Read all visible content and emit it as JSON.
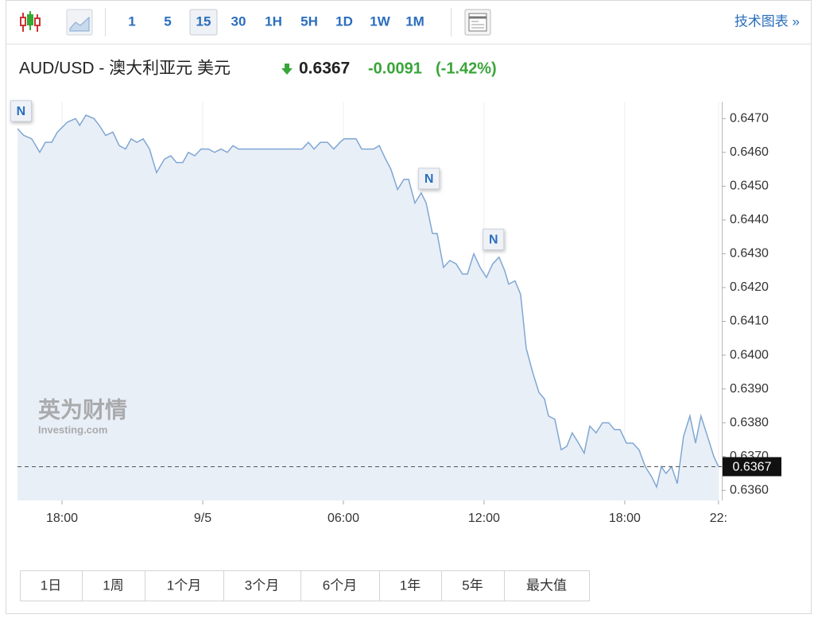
{
  "toolbar": {
    "intervals": [
      "1",
      "5",
      "15",
      "30",
      "1H",
      "5H",
      "1D",
      "1W",
      "1M"
    ],
    "selected": 2,
    "link": "技术图表 »"
  },
  "header": {
    "pair": "AUD/USD - 澳大利亚元 美元",
    "price": "0.6367",
    "change": "-0.0091",
    "change_pct": "(-1.42%)"
  },
  "watermark": {
    "brand": "英为财情",
    "site": "Investing.com"
  },
  "chart_data": {
    "type": "area",
    "color": "#7fa7d3",
    "fill": "#e9eff7",
    "x": [
      16.1,
      16.37,
      16.71,
      17.05,
      17.29,
      17.56,
      17.8,
      18.24,
      18.58,
      18.75,
      19.02,
      19.36,
      19.59,
      19.86,
      20.17,
      20.44,
      20.71,
      20.95,
      21.19,
      21.46,
      21.73,
      22.03,
      22.37,
      22.64,
      22.88,
      23.15,
      23.39,
      23.66,
      23.93,
      24.24,
      24.51,
      24.78,
      25.05,
      25.29,
      25.53,
      26.03,
      26.27,
      26.71,
      27.73,
      27.97,
      28.24,
      28.51,
      28.75,
      29.02,
      29.32,
      29.59,
      29.86,
      30.03,
      30.27,
      30.54,
      30.78,
      31.29,
      31.53,
      31.8,
      32.03,
      32.31,
      32.58,
      32.78,
      33.05,
      33.32,
      33.53,
      33.8,
      34.0,
      34.27,
      34.54,
      34.81,
      35.08,
      35.29,
      35.56,
      35.83,
      36.1,
      36.37,
      36.64,
      36.88,
      37.05,
      37.32,
      37.56,
      37.8,
      38.07,
      38.34,
      38.58,
      38.75,
      39.02,
      39.29,
      39.53,
      39.76,
      40.03,
      40.27,
      40.51,
      40.78,
      41.05,
      41.32,
      41.56,
      41.8,
      42.07,
      42.34,
      42.61,
      42.88,
      43.15,
      43.36,
      43.56,
      43.76,
      44.0,
      44.24,
      44.51,
      44.78,
      45.02,
      45.25,
      45.53,
      45.8,
      46.0
    ],
    "values": [
      0.6467,
      0.6465,
      0.6464,
      0.646,
      0.6463,
      0.6463,
      0.6466,
      0.6469,
      0.647,
      0.6468,
      0.6471,
      0.647,
      0.6468,
      0.6465,
      0.6466,
      0.6462,
      0.6461,
      0.6464,
      0.6463,
      0.6464,
      0.6461,
      0.6454,
      0.6458,
      0.6459,
      0.6457,
      0.6457,
      0.646,
      0.6459,
      0.6461,
      0.6461,
      0.646,
      0.6461,
      0.646,
      0.6462,
      0.6461,
      0.6461,
      0.6461,
      0.6461,
      0.6461,
      0.6461,
      0.6461,
      0.6463,
      0.6461,
      0.6463,
      0.6463,
      0.6461,
      0.6463,
      0.6464,
      0.6464,
      0.6464,
      0.6461,
      0.6461,
      0.6462,
      0.6458,
      0.6455,
      0.6449,
      0.6452,
      0.6452,
      0.6445,
      0.6448,
      0.6445,
      0.6436,
      0.6436,
      0.6426,
      0.6428,
      0.6427,
      0.6424,
      0.6424,
      0.643,
      0.6426,
      0.6423,
      0.6427,
      0.6429,
      0.6425,
      0.6421,
      0.6422,
      0.6418,
      0.6402,
      0.6395,
      0.6389,
      0.6387,
      0.6382,
      0.6381,
      0.6372,
      0.6373,
      0.6377,
      0.6374,
      0.6371,
      0.6379,
      0.6377,
      0.638,
      0.638,
      0.6378,
      0.6378,
      0.6374,
      0.6374,
      0.6372,
      0.6367,
      0.6364,
      0.6361,
      0.6367,
      0.6365,
      0.6367,
      0.6362,
      0.6376,
      0.6382,
      0.6374,
      0.6382,
      0.6376,
      0.637,
      0.6367
    ],
    "xlim": [
      16.1,
      46.14
    ],
    "xticks": [
      {
        "value": 18,
        "label": "18:00"
      },
      {
        "value": 24,
        "label": "9/5"
      },
      {
        "value": 30,
        "label": "06:00"
      },
      {
        "value": 36,
        "label": "12:00"
      },
      {
        "value": 42,
        "label": "18:00"
      },
      {
        "value": 46,
        "label": "22:"
      }
    ],
    "ylim": [
      0.6357,
      0.6475
    ],
    "yticks": [
      {
        "value": 0.636,
        "label": "0.6360"
      },
      {
        "value": 0.637,
        "label": "0.6370"
      },
      {
        "value": 0.638,
        "label": "0.6380"
      },
      {
        "value": 0.639,
        "label": "0.6390"
      },
      {
        "value": 0.64,
        "label": "0.6400"
      },
      {
        "value": 0.641,
        "label": "0.6410"
      },
      {
        "value": 0.642,
        "label": "0.6420"
      },
      {
        "value": 0.643,
        "label": "0.6430"
      },
      {
        "value": 0.644,
        "label": "0.6440"
      },
      {
        "value": 0.645,
        "label": "0.6450"
      },
      {
        "value": 0.646,
        "label": "0.6460"
      },
      {
        "value": 0.647,
        "label": "0.6470"
      }
    ],
    "current": 0.6367,
    "annotations": [
      {
        "label": "N",
        "x": 16.25,
        "y": 0.6472
      },
      {
        "label": "N",
        "x": 33.65,
        "y": 0.6452
      },
      {
        "label": "N",
        "x": 36.4,
        "y": 0.6434
      }
    ],
    "grid": true
  },
  "range_buttons": [
    "1日",
    "1周",
    "1个月",
    "3个月",
    "6个月",
    "1年",
    "5年",
    "最大值"
  ]
}
